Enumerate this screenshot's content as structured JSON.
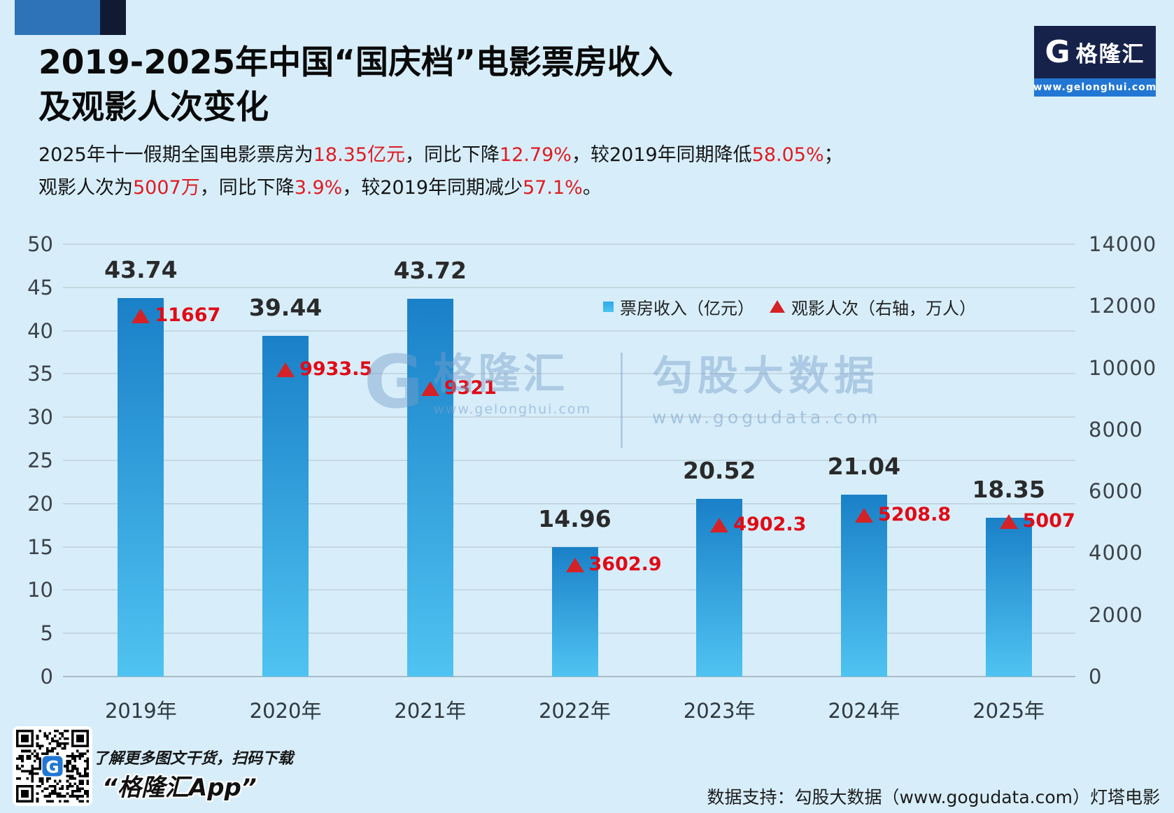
{
  "colors": {
    "background": "#d7eefa",
    "deco_blue": "#2e73b8",
    "deco_navy": "#101b33",
    "logo_navy": "#16224a",
    "logo_strip_blue": "#2277d4",
    "bar_gradient_top": "#1a80c8",
    "bar_gradient_bottom": "#4fc3f1",
    "triangle_red": "#d42227",
    "highlight_red": "#e11b20"
  },
  "logo": {
    "g_glyph": "G",
    "name": "格隆汇",
    "url": "www.gelonghui.com"
  },
  "header": {
    "title_line1": "2019-2025年中国“国庆档”电影票房收入",
    "title_line2": "及观影人次变化",
    "subtitle_lines": [
      [
        {
          "text": "2025年十一假期全国电影票房为",
          "red": false
        },
        {
          "text": "18.35亿元",
          "red": true
        },
        {
          "text": "，同比下降",
          "red": false
        },
        {
          "text": "12.79%",
          "red": true
        },
        {
          "text": "，较2019年同期降低",
          "red": false
        },
        {
          "text": "58.05%",
          "red": true
        },
        {
          "text": "；",
          "red": false
        }
      ],
      [
        {
          "text": "观影人次为",
          "red": false
        },
        {
          "text": "5007万",
          "red": true
        },
        {
          "text": "，同比下降",
          "red": false
        },
        {
          "text": "3.9%",
          "red": true
        },
        {
          "text": "，较2019年同期减少",
          "red": false
        },
        {
          "text": "57.1%",
          "red": true
        },
        {
          "text": "。",
          "red": false
        }
      ]
    ]
  },
  "chart_data": {
    "type": "bar",
    "categories": [
      "2019年",
      "2020年",
      "2021年",
      "2022年",
      "2023年",
      "2024年",
      "2025年"
    ],
    "series": [
      {
        "name": "票房收入（亿元）",
        "type": "bar",
        "axis": "left",
        "values": [
          43.74,
          39.44,
          43.72,
          14.96,
          20.52,
          21.04,
          18.35
        ]
      },
      {
        "name": "观影人次（右轴，万人）",
        "type": "triangle-marker",
        "axis": "right",
        "values": [
          11667,
          9933.5,
          9321,
          3602.9,
          4902.3,
          5208.8,
          5007
        ],
        "labels": [
          "11667",
          "9933.5",
          "9321",
          "3602.9",
          "4902.3",
          "5208.8",
          "5007"
        ]
      }
    ],
    "left_axis": {
      "min": 0,
      "max": 50,
      "step": 5
    },
    "right_axis": {
      "min": 0,
      "max": 14000,
      "step": 2000
    },
    "grid": true,
    "legend_position": "inside-top-right"
  },
  "watermark": {
    "g_glyph": "G",
    "gelonghui_name": "格隆汇",
    "gelonghui_url": "www.gelonghui.com",
    "gogudata_name": "勾股大数据",
    "gogudata_url": "www.gogudata.com"
  },
  "footer": {
    "promo": "了解更多图文干货，扫码下载",
    "app_name": "“格隆汇App”",
    "datasource": "数据支持：勾股大数据（www.gogudata.com）灯塔电影"
  }
}
